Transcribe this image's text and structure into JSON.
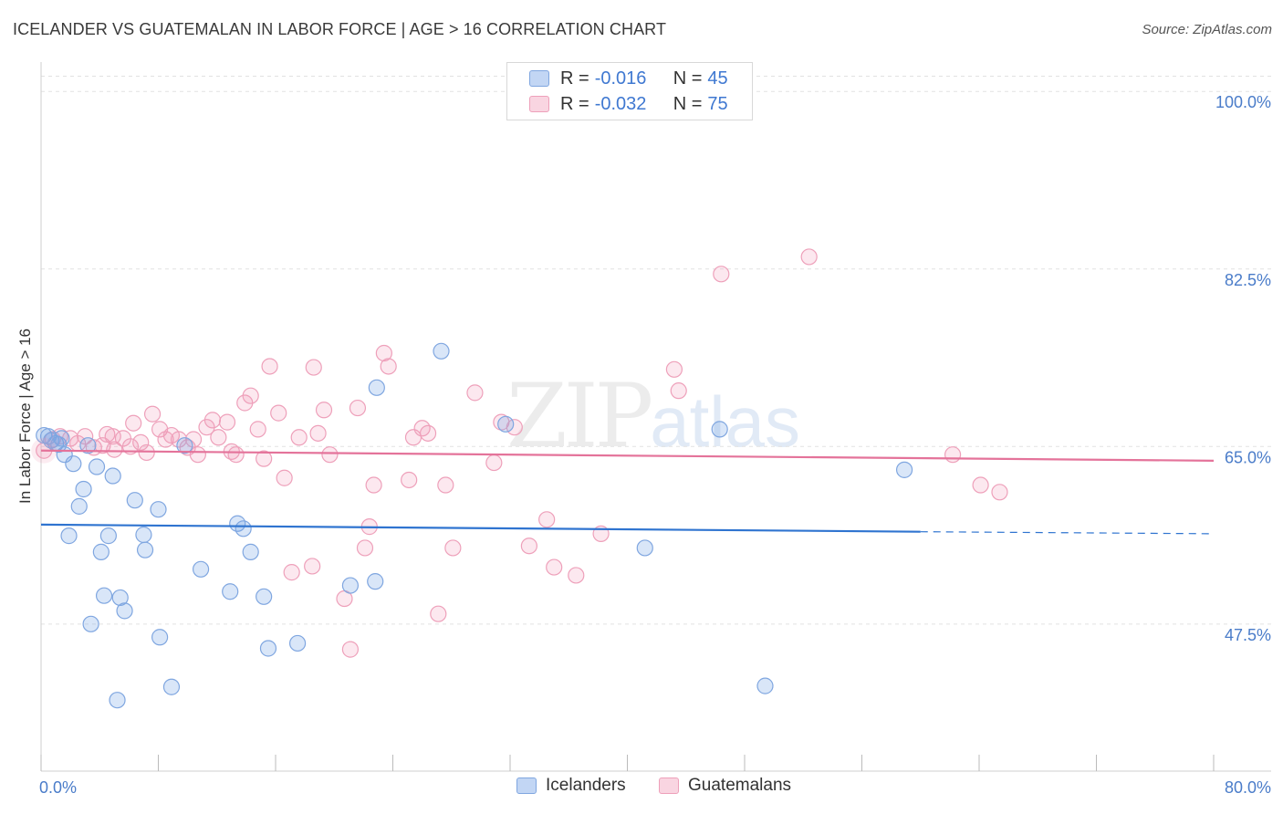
{
  "header": {
    "title": "ICELANDER VS GUATEMALAN IN LABOR FORCE | AGE > 16 CORRELATION CHART",
    "source": "Source: ZipAtlas.com"
  },
  "legend": {
    "r_label": "R = ",
    "n_label": "N = ",
    "series": [
      {
        "name": "Icelanders",
        "r": "-0.016",
        "n": "45"
      },
      {
        "name": "Guatemalans",
        "r": "-0.032",
        "n": "75"
      }
    ]
  },
  "watermark": {
    "zip": "ZIP",
    "atlas": "atlas"
  },
  "colors": {
    "blue_fill": "rgba(120,165,230,0.28)",
    "blue_stroke": "#7fa6e0",
    "blue_line": "#2f74d0",
    "pink_fill": "rgba(240,150,180,0.22)",
    "pink_stroke": "#eea0ba",
    "pink_line": "#e4739a"
  },
  "chart_data": {
    "type": "scatter",
    "title": "ICELANDER VS GUATEMALAN IN LABOR FORCE | AGE > 16 CORRELATION CHART",
    "xlabel": "",
    "ylabel": "In Labor Force | Age > 16",
    "xlim": [
      0,
      80
    ],
    "ylim": [
      33,
      102
    ],
    "x_tick_labels": [
      "0.0%",
      "80.0%"
    ],
    "y_ticks": [
      47.5,
      65.0,
      82.5,
      100.0
    ],
    "y_tick_labels": [
      "47.5%",
      "65.0%",
      "82.5%",
      "100.0%"
    ],
    "grid": true,
    "series": [
      {
        "name": "Icelanders",
        "trend": {
          "x0": 0,
          "y0": 57.3,
          "x1": 60,
          "y1": 56.6,
          "dash_to_x": 80,
          "dash_y1": 56.4
        },
        "points": [
          [
            0.2,
            66.1
          ],
          [
            0.5,
            66.0
          ],
          [
            0.7,
            65.6
          ],
          [
            1.0,
            65.3
          ],
          [
            1.2,
            65.2
          ],
          [
            1.6,
            64.2
          ],
          [
            2.2,
            63.3
          ],
          [
            2.9,
            60.8
          ],
          [
            3.2,
            65.1
          ],
          [
            3.8,
            63.0
          ],
          [
            2.6,
            59.1
          ],
          [
            4.9,
            62.1
          ],
          [
            6.4,
            59.7
          ],
          [
            8.0,
            58.8
          ],
          [
            1.9,
            56.2
          ],
          [
            4.6,
            56.2
          ],
          [
            7.0,
            56.3
          ],
          [
            4.1,
            54.6
          ],
          [
            7.1,
            54.8
          ],
          [
            13.4,
            57.4
          ],
          [
            13.8,
            56.9
          ],
          [
            14.3,
            54.6
          ],
          [
            10.9,
            52.9
          ],
          [
            22.8,
            51.7
          ],
          [
            21.1,
            51.3
          ],
          [
            4.3,
            50.3
          ],
          [
            5.4,
            50.1
          ],
          [
            12.9,
            50.7
          ],
          [
            15.2,
            50.2
          ],
          [
            5.7,
            48.8
          ],
          [
            3.4,
            47.5
          ],
          [
            8.1,
            46.2
          ],
          [
            15.5,
            45.1
          ],
          [
            17.5,
            45.6
          ],
          [
            8.9,
            41.3
          ],
          [
            5.2,
            40.0
          ],
          [
            49.4,
            41.4
          ],
          [
            27.3,
            74.4
          ],
          [
            22.9,
            70.8
          ],
          [
            31.7,
            67.2
          ],
          [
            46.3,
            66.7
          ],
          [
            9.8,
            65.1
          ],
          [
            58.9,
            62.7
          ],
          [
            41.2,
            55.0
          ],
          [
            1.4,
            65.8
          ]
        ]
      },
      {
        "name": "Guatemalans",
        "trend": {
          "x0": 0,
          "y0": 64.6,
          "x1": 80,
          "y1": 63.6
        },
        "points": [
          [
            0.2,
            64.6
          ],
          [
            0.8,
            65.7
          ],
          [
            1.3,
            66.0
          ],
          [
            2.0,
            65.8
          ],
          [
            2.5,
            65.3
          ],
          [
            3.0,
            66.0
          ],
          [
            3.6,
            64.9
          ],
          [
            4.2,
            65.1
          ],
          [
            4.5,
            66.2
          ],
          [
            5.0,
            64.7
          ],
          [
            5.6,
            65.8
          ],
          [
            6.3,
            67.3
          ],
          [
            6.8,
            65.4
          ],
          [
            7.2,
            64.4
          ],
          [
            7.6,
            68.2
          ],
          [
            8.1,
            66.7
          ],
          [
            8.5,
            65.7
          ],
          [
            8.9,
            66.1
          ],
          [
            9.4,
            65.7
          ],
          [
            10.0,
            64.9
          ],
          [
            10.4,
            65.7
          ],
          [
            10.7,
            64.2
          ],
          [
            11.3,
            66.9
          ],
          [
            11.7,
            67.6
          ],
          [
            12.1,
            65.9
          ],
          [
            12.7,
            67.4
          ],
          [
            13.0,
            64.5
          ],
          [
            13.3,
            64.2
          ],
          [
            13.9,
            69.3
          ],
          [
            14.3,
            70.0
          ],
          [
            14.8,
            66.7
          ],
          [
            15.2,
            63.8
          ],
          [
            15.6,
            72.9
          ],
          [
            16.2,
            68.3
          ],
          [
            16.6,
            61.9
          ],
          [
            17.6,
            65.9
          ],
          [
            18.6,
            72.8
          ],
          [
            18.9,
            66.3
          ],
          [
            19.3,
            68.6
          ],
          [
            19.7,
            64.2
          ],
          [
            20.7,
            50.0
          ],
          [
            21.1,
            45.0
          ],
          [
            21.6,
            68.8
          ],
          [
            22.1,
            55.0
          ],
          [
            22.4,
            57.1
          ],
          [
            22.7,
            61.2
          ],
          [
            23.4,
            74.2
          ],
          [
            23.7,
            72.9
          ],
          [
            25.1,
            61.7
          ],
          [
            25.4,
            65.9
          ],
          [
            26.0,
            66.8
          ],
          [
            26.4,
            66.3
          ],
          [
            27.1,
            48.5
          ],
          [
            27.6,
            61.2
          ],
          [
            28.1,
            55.0
          ],
          [
            29.6,
            70.3
          ],
          [
            30.9,
            63.4
          ],
          [
            31.4,
            67.4
          ],
          [
            32.3,
            66.9
          ],
          [
            33.3,
            55.2
          ],
          [
            34.5,
            57.8
          ],
          [
            35.0,
            53.1
          ],
          [
            36.5,
            52.3
          ],
          [
            38.2,
            56.4
          ],
          [
            43.2,
            72.6
          ],
          [
            43.5,
            70.5
          ],
          [
            46.4,
            82.0
          ],
          [
            52.4,
            83.7
          ],
          [
            62.2,
            64.2
          ],
          [
            64.1,
            61.2
          ],
          [
            65.4,
            60.5
          ],
          [
            18.5,
            53.2
          ],
          [
            17.1,
            52.6
          ],
          [
            4.9,
            66.0
          ],
          [
            6.1,
            65.0
          ]
        ]
      }
    ]
  }
}
